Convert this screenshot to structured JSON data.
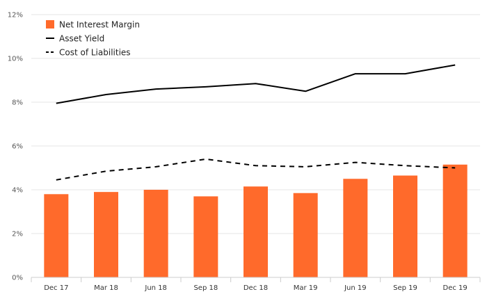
{
  "chart_data": {
    "type": "bar",
    "categories": [
      "Dec 17",
      "Mar 18",
      "Jun 18",
      "Sep 18",
      "Dec 18",
      "Mar 19",
      "Jun 19",
      "Sep 19",
      "Dec 19"
    ],
    "ylim": [
      0,
      12
    ],
    "yticks": [
      0,
      2,
      4,
      6,
      8,
      10,
      12
    ],
    "ytick_labels": [
      "0%",
      "2%",
      "4%",
      "6%",
      "8%",
      "10%",
      "12%"
    ],
    "grid": "horizontal",
    "legend_position": "top-left",
    "series": [
      {
        "name": "Net Interest Margin",
        "kind": "bar",
        "color": "#ff6a2b",
        "values": [
          3.8,
          3.9,
          4.0,
          3.7,
          4.15,
          3.85,
          4.5,
          4.65,
          5.15
        ]
      },
      {
        "name": "Asset Yield",
        "kind": "line",
        "style": "solid",
        "color": "#000000",
        "values": [
          7.95,
          8.35,
          8.6,
          8.7,
          8.85,
          8.5,
          9.3,
          9.3,
          9.7
        ]
      },
      {
        "name": "Cost of Liabilities",
        "kind": "line",
        "style": "dashed",
        "color": "#000000",
        "values": [
          4.45,
          4.85,
          5.05,
          5.4,
          5.1,
          5.05,
          5.25,
          5.1,
          5.0
        ]
      }
    ]
  }
}
